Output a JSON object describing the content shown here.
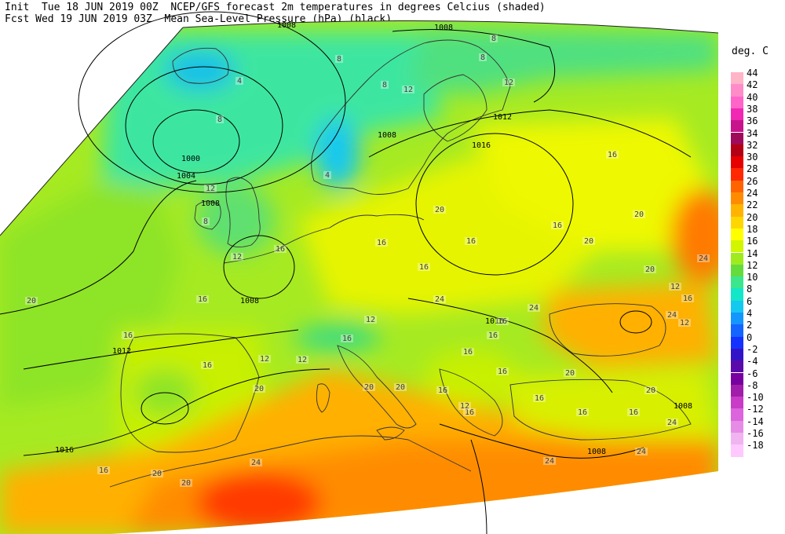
{
  "header": {
    "line1": "Init  Tue 18 JUN 2019 00Z  NCEP/GFS forecast 2m temperatures in degrees Celcius (shaded)",
    "line2": "Fcst Wed 19 JUN 2019 03Z  Mean Sea-Level Pressure (hPa) (black)."
  },
  "legend": {
    "title": "deg. C",
    "entries": [
      {
        "label": "44",
        "color": "#ffb4c8"
      },
      {
        "label": "42",
        "color": "#ff8cc8"
      },
      {
        "label": "40",
        "color": "#ff64c8"
      },
      {
        "label": "38",
        "color": "#f028b4"
      },
      {
        "label": "36",
        "color": "#c8148c"
      },
      {
        "label": "34",
        "color": "#a00a5a"
      },
      {
        "label": "32",
        "color": "#b40014"
      },
      {
        "label": "30",
        "color": "#e60000"
      },
      {
        "label": "28",
        "color": "#ff2800"
      },
      {
        "label": "26",
        "color": "#ff6400"
      },
      {
        "label": "24",
        "color": "#ff8c00"
      },
      {
        "label": "22",
        "color": "#ffb400"
      },
      {
        "label": "20",
        "color": "#ffd700"
      },
      {
        "label": "18",
        "color": "#ffff00"
      },
      {
        "label": "16",
        "color": "#d2f500"
      },
      {
        "label": "14",
        "color": "#a0eb1e"
      },
      {
        "label": "12",
        "color": "#64dc3c"
      },
      {
        "label": "10",
        "color": "#3ce68c"
      },
      {
        "label": "8",
        "color": "#14e6c8"
      },
      {
        "label": "6",
        "color": "#14c8f0"
      },
      {
        "label": "4",
        "color": "#1496ff"
      },
      {
        "label": "2",
        "color": "#1464ff"
      },
      {
        "label": "0",
        "color": "#1432ff"
      },
      {
        "label": "-2",
        "color": "#3214c8"
      },
      {
        "label": "-4",
        "color": "#5a0aaa"
      },
      {
        "label": "-6",
        "color": "#7800a0"
      },
      {
        "label": "-8",
        "color": "#a01eaa"
      },
      {
        "label": "-10",
        "color": "#c83cc8"
      },
      {
        "label": "-12",
        "color": "#dc64dc"
      },
      {
        "label": "-14",
        "color": "#e68ce6"
      },
      {
        "label": "-16",
        "color": "#f0b4f0"
      },
      {
        "label": "-18",
        "color": "#ffc8ff"
      }
    ]
  },
  "isobar_labels": [
    "1008",
    "1008",
    "1012",
    "1016",
    "1008",
    "1000",
    "1004",
    "1008",
    "1008",
    "1012",
    "1016",
    "1016",
    "1016",
    "1008",
    "1012",
    "1008",
    "1008",
    "1016"
  ],
  "temp_labels": [
    "8",
    "8",
    "4",
    "8",
    "4",
    "12",
    "16",
    "8",
    "8",
    "12",
    "12",
    "8",
    "12",
    "16",
    "20",
    "24",
    "24",
    "24",
    "20",
    "16",
    "20",
    "16",
    "20",
    "16",
    "24",
    "12",
    "12",
    "16",
    "20",
    "16",
    "16",
    "16",
    "16",
    "12",
    "12",
    "16",
    "16",
    "20",
    "20",
    "24",
    "24",
    "20",
    "20",
    "20",
    "16",
    "16",
    "16",
    "16",
    "16",
    "16",
    "12",
    "16",
    "12",
    "24",
    "24",
    "16",
    "20",
    "16",
    "20"
  ]
}
